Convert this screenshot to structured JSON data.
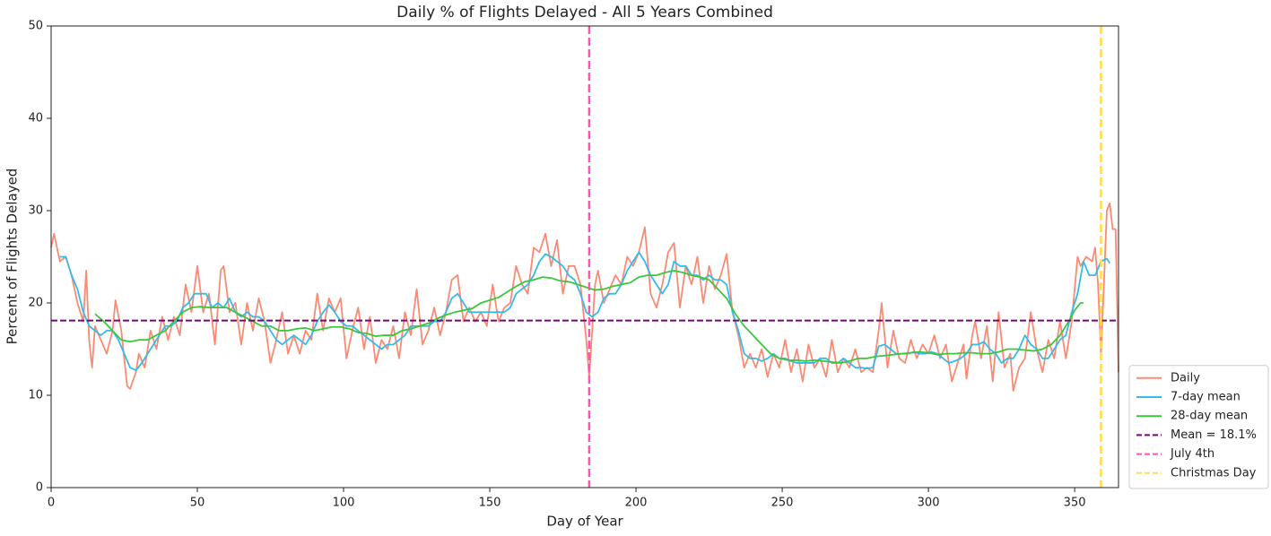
{
  "chart_data": {
    "type": "line",
    "title": "Daily % of Flights Delayed - All 5 Years Combined",
    "x_label": "Day of Year",
    "y_label": "Percent of Flights Delayed",
    "xlim": [
      0,
      365
    ],
    "ylim": [
      0,
      50
    ],
    "xticks": [
      0,
      50,
      100,
      150,
      200,
      250,
      300,
      350
    ],
    "yticks": [
      0,
      10,
      20,
      30,
      40,
      50
    ],
    "legend": "outside right",
    "series": [
      {
        "name": "Daily",
        "color": "#fa8a72",
        "x": [
          0,
          1,
          3,
          5,
          7,
          9,
          11,
          12,
          13,
          14,
          15,
          17,
          19,
          21,
          22,
          24,
          26,
          27,
          29,
          30,
          32,
          34,
          36,
          38,
          40,
          42,
          44,
          46,
          48,
          50,
          52,
          54,
          56,
          58,
          59,
          61,
          63,
          65,
          67,
          69,
          71,
          73,
          75,
          77,
          79,
          81,
          83,
          85,
          87,
          89,
          91,
          93,
          95,
          97,
          99,
          101,
          103,
          105,
          107,
          109,
          111,
          113,
          115,
          117,
          119,
          121,
          123,
          125,
          127,
          129,
          131,
          133,
          135,
          137,
          139,
          141,
          143,
          145,
          147,
          149,
          151,
          153,
          155,
          157,
          159,
          161,
          163,
          165,
          167,
          169,
          171,
          173,
          175,
          177,
          179,
          181,
          183,
          184,
          186,
          187,
          189,
          191,
          193,
          195,
          197,
          199,
          201,
          203,
          205,
          207,
          209,
          211,
          213,
          215,
          217,
          219,
          221,
          223,
          225,
          227,
          229,
          231,
          233,
          235,
          237,
          239,
          241,
          243,
          245,
          247,
          249,
          251,
          253,
          255,
          257,
          259,
          261,
          263,
          265,
          267,
          269,
          271,
          273,
          275,
          277,
          279,
          281,
          283,
          284,
          286,
          288,
          290,
          292,
          294,
          296,
          298,
          300,
          302,
          304,
          306,
          308,
          310,
          312,
          313,
          315,
          316,
          318,
          320,
          322,
          324,
          326,
          328,
          329,
          331,
          333,
          335,
          337,
          339,
          341,
          343,
          345,
          347,
          349,
          351,
          352,
          354,
          356,
          357,
          358,
          359,
          360,
          361,
          362,
          363,
          364,
          365
        ],
        "values": [
          26,
          27.5,
          24.5,
          25,
          23,
          20,
          18,
          23.5,
          16,
          13,
          17.5,
          16,
          14.5,
          17,
          20.3,
          17,
          11,
          10.7,
          12.5,
          14.5,
          13,
          17,
          15,
          18.5,
          16,
          18.5,
          16.5,
          22,
          19,
          24,
          19,
          21,
          15.5,
          23.5,
          24,
          19,
          20,
          15.5,
          20,
          17,
          20.5,
          18,
          13.5,
          16,
          19,
          14.5,
          16.5,
          14.5,
          17,
          16,
          21,
          17,
          20.5,
          19,
          20.5,
          14,
          17,
          19.5,
          15,
          18.5,
          13.5,
          16,
          15,
          17.5,
          14,
          19,
          16.5,
          21.5,
          15.5,
          17,
          19.5,
          16.5,
          19,
          22.5,
          23,
          18,
          19.5,
          18,
          19,
          17.5,
          22,
          18,
          19.5,
          20,
          24,
          22,
          21,
          26,
          25.5,
          27.5,
          24,
          26.8,
          21,
          24,
          24,
          22,
          16,
          12,
          22,
          23.5,
          20,
          21.5,
          23,
          22,
          25,
          24,
          25.5,
          28.2,
          21,
          19.5,
          22,
          25.5,
          26.5,
          19.5,
          24,
          22,
          25,
          20,
          24,
          21.5,
          23,
          25.3,
          19,
          16.5,
          13,
          14.5,
          13,
          15,
          12,
          14.5,
          13,
          16,
          12.5,
          15,
          11.5,
          15.5,
          13,
          14,
          12,
          16,
          12.5,
          14,
          13,
          15,
          12.5,
          13,
          12.5,
          17,
          20,
          13,
          17,
          14,
          13.5,
          16,
          14,
          15.5,
          14.5,
          16.5,
          14,
          15.5,
          11.5,
          13.5,
          15.5,
          11.8,
          16.5,
          18,
          14,
          17.5,
          11.5,
          19,
          13,
          14.5,
          10.5,
          13,
          14,
          19,
          15,
          12.5,
          16,
          14,
          18,
          14,
          18,
          25,
          24,
          25,
          24.5,
          26,
          22,
          14.5,
          22,
          30,
          30.8,
          28,
          28,
          12.5
        ]
      },
      {
        "name": "7-day mean",
        "color": "#33bbee",
        "x": [
          3,
          5,
          7,
          9,
          11,
          13,
          15,
          17,
          19,
          21,
          23,
          25,
          27,
          29,
          31,
          33,
          35,
          37,
          39,
          41,
          43,
          45,
          47,
          49,
          51,
          53,
          55,
          57,
          59,
          61,
          63,
          65,
          67,
          69,
          71,
          73,
          75,
          77,
          79,
          81,
          83,
          85,
          87,
          89,
          91,
          93,
          95,
          97,
          99,
          101,
          103,
          105,
          107,
          109,
          111,
          113,
          115,
          117,
          119,
          121,
          123,
          125,
          127,
          129,
          131,
          133,
          135,
          137,
          139,
          141,
          143,
          145,
          147,
          149,
          151,
          153,
          155,
          157,
          159,
          161,
          163,
          165,
          167,
          169,
          171,
          173,
          175,
          177,
          179,
          181,
          183,
          185,
          187,
          189,
          191,
          193,
          195,
          197,
          199,
          201,
          203,
          205,
          207,
          209,
          211,
          213,
          215,
          217,
          219,
          221,
          223,
          225,
          227,
          229,
          231,
          233,
          235,
          237,
          239,
          241,
          243,
          245,
          247,
          249,
          251,
          253,
          255,
          257,
          259,
          261,
          263,
          265,
          267,
          269,
          271,
          273,
          275,
          277,
          279,
          281,
          283,
          285,
          287,
          289,
          291,
          293,
          295,
          297,
          299,
          301,
          303,
          305,
          307,
          309,
          311,
          313,
          315,
          317,
          319,
          321,
          323,
          325,
          327,
          329,
          331,
          333,
          335,
          337,
          339,
          341,
          343,
          345,
          347,
          349,
          351,
          353,
          355,
          357,
          359,
          361,
          362
        ],
        "values": [
          25,
          25,
          23,
          21.5,
          19,
          17.5,
          17,
          16.5,
          17,
          17,
          16,
          14.5,
          13,
          12.7,
          13.5,
          14.5,
          15.5,
          16.5,
          17.5,
          17.5,
          18,
          19.5,
          20,
          21,
          21,
          21,
          19.5,
          20,
          19.5,
          20.5,
          19,
          18.5,
          19,
          18.5,
          18.5,
          18,
          17,
          16,
          15.5,
          16,
          16.5,
          16,
          15.5,
          16.5,
          18,
          19,
          19.8,
          19,
          18,
          17.5,
          17.5,
          17,
          16.5,
          16,
          15.5,
          15,
          15.5,
          15.5,
          16,
          16.5,
          17.5,
          17.5,
          17.5,
          17.5,
          18,
          18,
          19,
          20.5,
          21,
          20,
          19,
          19,
          19,
          19,
          19,
          19,
          19,
          19.5,
          21,
          21.5,
          22,
          23,
          24.5,
          25.3,
          25,
          24.5,
          24,
          23,
          22.5,
          21,
          19,
          18.5,
          19,
          20.5,
          21,
          21,
          22,
          23.5,
          24.5,
          25.5,
          24.5,
          23,
          22,
          21,
          22,
          24.5,
          24,
          24,
          23,
          23,
          22.5,
          23,
          22.5,
          22.5,
          22,
          19,
          17,
          14.5,
          14,
          14,
          13.7,
          14,
          14.5,
          14,
          14,
          13.7,
          13.5,
          13.5,
          13.5,
          13.5,
          14,
          14,
          13.5,
          13.5,
          14,
          13.5,
          13,
          13,
          12.9,
          13,
          15.3,
          15.5,
          15,
          14.5,
          14.5,
          14.5,
          14.7,
          14.5,
          14.5,
          14.7,
          14.5,
          14,
          13.5,
          13.7,
          14,
          14.5,
          15.5,
          15.5,
          15.8,
          15,
          14.5,
          13.5,
          14,
          14,
          15,
          16.5,
          15.5,
          15,
          14,
          14,
          15,
          16,
          16.5,
          19,
          21,
          24.5,
          23,
          23,
          24.5,
          24.8,
          24.3
        ]
      },
      {
        "name": "28-day mean",
        "color": "#3cc63c",
        "x": [
          15,
          18,
          21,
          24,
          27,
          30,
          33,
          36,
          39,
          42,
          45,
          48,
          51,
          54,
          57,
          60,
          63,
          66,
          69,
          72,
          75,
          78,
          81,
          84,
          87,
          90,
          93,
          96,
          99,
          102,
          105,
          108,
          111,
          114,
          117,
          120,
          123,
          126,
          129,
          132,
          135,
          138,
          141,
          144,
          147,
          150,
          153,
          156,
          159,
          162,
          165,
          168,
          171,
          174,
          177,
          180,
          183,
          186,
          189,
          192,
          195,
          198,
          201,
          204,
          207,
          210,
          213,
          216,
          219,
          222,
          225,
          228,
          231,
          234,
          237,
          240,
          243,
          246,
          249,
          252,
          255,
          258,
          261,
          264,
          267,
          270,
          273,
          276,
          279,
          282,
          285,
          288,
          291,
          294,
          297,
          300,
          303,
          306,
          309,
          312,
          315,
          318,
          321,
          324,
          327,
          330,
          333,
          336,
          339,
          342,
          345,
          348,
          350,
          352,
          353
        ],
        "values": [
          18.8,
          18,
          17,
          16,
          15.8,
          16,
          16,
          16.5,
          17,
          18,
          19,
          19.5,
          19.6,
          19.5,
          19.5,
          19.5,
          19,
          18.5,
          18,
          17.5,
          17.5,
          17,
          17,
          17.2,
          17.3,
          17,
          17.2,
          17.4,
          17.4,
          17.2,
          16.8,
          16.7,
          16.4,
          16.5,
          16.5,
          17,
          17.2,
          17.5,
          17.8,
          18.3,
          18.7,
          19,
          19.2,
          19.4,
          20,
          20.3,
          20.6,
          21.2,
          21.8,
          22.3,
          22.5,
          22.8,
          22.7,
          22.4,
          22.3,
          22,
          21.7,
          21.4,
          21.5,
          21.8,
          22,
          22.2,
          22.8,
          23,
          23,
          23.3,
          23.5,
          23.3,
          23,
          22.8,
          22.5,
          21.5,
          20.5,
          18.8,
          17.5,
          16.5,
          15.5,
          14.5,
          14,
          13.8,
          13.8,
          13.7,
          13.8,
          13.7,
          13.6,
          13.5,
          13.7,
          14,
          14,
          14.2,
          14.3,
          14.4,
          14.5,
          14.6,
          14.7,
          14.6,
          14.4,
          14.5,
          14.5,
          14.6,
          14.6,
          14.5,
          14.5,
          14.7,
          15,
          15,
          14.9,
          14.8,
          15,
          15.5,
          16.5,
          18,
          19.2,
          20,
          20
        ]
      }
    ],
    "reference_lines": [
      {
        "name": "Mean = 18.1%",
        "color": "#800080",
        "orientation": "horizontal",
        "value": 18.1
      },
      {
        "name": "July 4th",
        "color": "#ff55aa",
        "orientation": "vertical",
        "value": 184
      },
      {
        "name": "Christmas Day",
        "color": "#ffdd44",
        "orientation": "vertical",
        "value": 359
      }
    ]
  }
}
